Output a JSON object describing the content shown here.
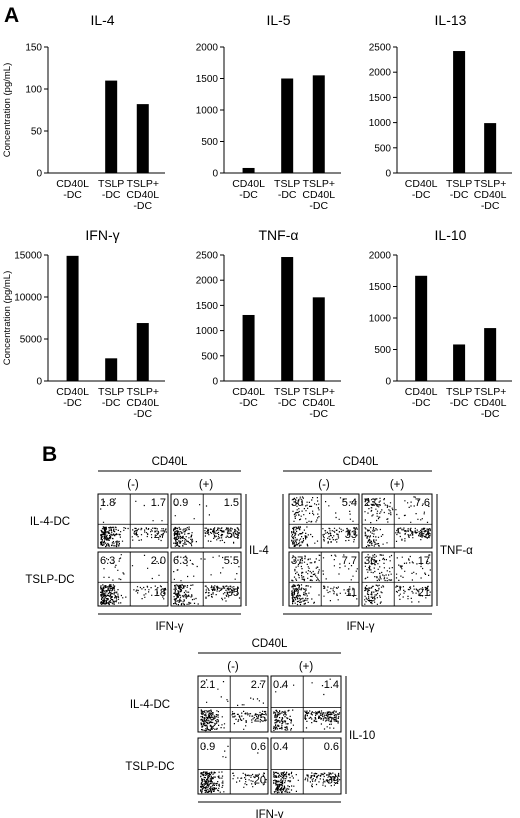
{
  "panel_a": {
    "letter": "A",
    "ylabel": "Concentration (pg/mL)"
  },
  "chart_data": [
    {
      "type": "bar",
      "title": "IL-4",
      "categories": [
        "CD40L\n-DC",
        "TSLP\n-DC",
        "TSLP+\nCD40L\n-DC"
      ],
      "values": [
        0,
        110,
        82
      ],
      "ylim": [
        0,
        150
      ],
      "yticks": [
        0,
        50,
        100,
        150
      ]
    },
    {
      "type": "bar",
      "title": "IL-5",
      "categories": [
        "CD40L\n-DC",
        "TSLP\n-DC",
        "TSLP+\nCD40L\n-DC"
      ],
      "values": [
        80,
        1500,
        1550
      ],
      "ylim": [
        0,
        2000
      ],
      "yticks": [
        0,
        500,
        1000,
        1500,
        2000
      ]
    },
    {
      "type": "bar",
      "title": "IL-13",
      "categories": [
        "CD40L\n-DC",
        "TSLP\n-DC",
        "TSLP+\nCD40L\n-DC"
      ],
      "values": [
        0,
        2420,
        990
      ],
      "ylim": [
        0,
        2500
      ],
      "yticks": [
        0,
        500,
        1000,
        1500,
        2000,
        2500
      ]
    },
    {
      "type": "bar",
      "title": "IFN-γ",
      "categories": [
        "CD40L\n-DC",
        "TSLP\n-DC",
        "TSLP+\nCD40L\n-DC"
      ],
      "values": [
        14900,
        2700,
        6900
      ],
      "ylim": [
        0,
        15000
      ],
      "yticks": [
        0,
        5000,
        10000,
        15000
      ]
    },
    {
      "type": "bar",
      "title": "TNF-α",
      "categories": [
        "CD40L\n-DC",
        "TSLP\n-DC",
        "TSLP+\nCD40L\n-DC"
      ],
      "values": [
        1310,
        2460,
        1660
      ],
      "ylim": [
        0,
        2500
      ],
      "yticks": [
        0,
        500,
        1000,
        1500,
        2000,
        2500
      ]
    },
    {
      "type": "bar",
      "title": "IL-10",
      "categories": [
        "CD40L\n-DC",
        "TSLP\n-DC",
        "TSLP+\nCD40L\n-DC"
      ],
      "values": [
        1670,
        580,
        840
      ],
      "ylim": [
        0,
        2000
      ],
      "yticks": [
        0,
        500,
        1000,
        1500,
        2000
      ]
    }
  ],
  "panel_b": {
    "letter": "B",
    "groups": [
      {
        "header": "CD40L",
        "columns": [
          "(-)",
          "(+)"
        ],
        "rows": [
          "IL-4-DC",
          "TSLP-DC"
        ],
        "xaxis": "IFN-γ",
        "yaxis": "IL-4",
        "plots": [
          {
            "ul": "1.8",
            "ur": "1.7",
            "lr": "27"
          },
          {
            "ul": "0.9",
            "ur": "1.5",
            "lr": "50"
          },
          {
            "ul": "6.3",
            "ur": "2.0",
            "lr": "18"
          },
          {
            "ul": "6.3",
            "ur": "5.5",
            "lr": "35"
          }
        ]
      },
      {
        "header": "CD40L",
        "columns": [
          "(-)",
          "(+)"
        ],
        "rows": [],
        "xaxis": "IFN-γ",
        "yaxis": "TNF-α",
        "plots": [
          {
            "ul": "30",
            "ur": "5.4",
            "lr": "33"
          },
          {
            "ul": "23",
            "ur": "7.6",
            "lr": "43"
          },
          {
            "ul": "37",
            "ur": "7.7",
            "lr": "11"
          },
          {
            "ul": "36",
            "ur": "17",
            "lr": "21"
          }
        ]
      },
      {
        "header": "CD40L",
        "columns": [
          "(-)",
          "(+)"
        ],
        "rows": [
          "IL-4-DC",
          "TSLP-DC"
        ],
        "xaxis": "IFN-γ",
        "yaxis": "IL-10",
        "plots": [
          {
            "ul": "2.1",
            "ur": "2.7",
            "lr": "25"
          },
          {
            "ul": "0.4",
            "ur": "1.4",
            "lr": "51"
          },
          {
            "ul": "0.9",
            "ur": "0.6",
            "lr": "20"
          },
          {
            "ul": "0.4",
            "ur": "0.6",
            "lr": "39"
          }
        ]
      }
    ]
  }
}
